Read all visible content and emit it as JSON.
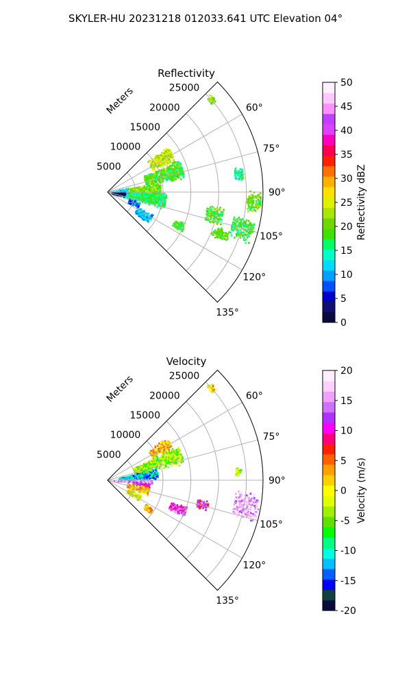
{
  "figure_title": "SKYLER-HU  20231218  012033.641 UTC Elevation 04°",
  "chart_data": [
    {
      "type": "heatmap",
      "title": "Reflectivity",
      "radial_label": "Meters",
      "radial_ticks": [
        5000,
        10000,
        15000,
        20000,
        25000
      ],
      "angle_ticks": [
        60,
        75,
        90,
        105,
        120,
        135
      ],
      "angle_range_deg": [
        45,
        135
      ],
      "range_max": 28000,
      "colorbar": {
        "label": "Reflectivity dBZ",
        "min": 0,
        "max": 50,
        "ticks": [
          0,
          5,
          10,
          15,
          20,
          25,
          30,
          35,
          40,
          45,
          50
        ],
        "colors": [
          "#0a0a3c",
          "#10106e",
          "#0000c8",
          "#0050ff",
          "#00a0ff",
          "#00dcff",
          "#00ffc8",
          "#00ff64",
          "#40e000",
          "#70d800",
          "#a8e800",
          "#e0f000",
          "#ffe000",
          "#ffb000",
          "#ff7000",
          "#ff2000",
          "#ff0050",
          "#ff00c0",
          "#e040ff",
          "#c040ff",
          "#ff90ff",
          "#ffc8ff",
          "#fff0ff"
        ]
      },
      "blobs": [
        {
          "az": 58,
          "r": [
            9000,
            13500
          ],
          "spread": 7,
          "value": 24
        },
        {
          "az": 72,
          "r": [
            7000,
            14000
          ],
          "spread": 8,
          "value": 19
        },
        {
          "az": 86,
          "r": [
            3500,
            9500
          ],
          "spread": 9,
          "value": 21
        },
        {
          "az": 98,
          "r": [
            2000,
            10500
          ],
          "spread": 9,
          "value": 17
        },
        {
          "az": 88,
          "r": [
            500,
            3500
          ],
          "spread": 12,
          "value": 11
        },
        {
          "az": 97,
          "r": [
            700,
            3000
          ],
          "spread": 8,
          "value": 3
        },
        {
          "az": 112,
          "r": [
            4000,
            6000
          ],
          "spread": 6,
          "value": 8
        },
        {
          "az": 122,
          "r": [
            6000,
            9000
          ],
          "spread": 6,
          "value": 11
        },
        {
          "az": 94,
          "r": [
            25000,
            27500
          ],
          "spread": 5,
          "value": 20
        },
        {
          "az": 102,
          "r": [
            18000,
            21000
          ],
          "spread": 5,
          "value": 19
        },
        {
          "az": 105,
          "r": [
            23000,
            27000
          ],
          "spread": 5,
          "value": 18
        },
        {
          "az": 115,
          "r": [
            13000,
            15000
          ],
          "spread": 4,
          "value": 19
        },
        {
          "az": 110,
          "r": [
            20000,
            23000
          ],
          "spread": 3,
          "value": 20
        },
        {
          "az": 48,
          "r": [
            24500,
            25500
          ],
          "spread": 2,
          "value": 22
        },
        {
          "az": 82,
          "r": [
            23000,
            24500
          ],
          "spread": 3,
          "value": 16
        }
      ]
    },
    {
      "type": "heatmap",
      "title": "Velocity",
      "radial_label": "Meters",
      "radial_ticks": [
        5000,
        10000,
        15000,
        20000,
        25000
      ],
      "angle_ticks": [
        60,
        75,
        90,
        105,
        120,
        135
      ],
      "angle_range_deg": [
        45,
        135
      ],
      "range_max": 28000,
      "colorbar": {
        "label": "Velocity (m/s)",
        "min": -20,
        "max": 20,
        "ticks": [
          -20,
          -15,
          -10,
          -5,
          0,
          5,
          10,
          15,
          20
        ],
        "colors": [
          "#0a0a3c",
          "#104040",
          "#0000ff",
          "#0060ff",
          "#00c0ff",
          "#00ffe0",
          "#00ff80",
          "#00ff00",
          "#60e000",
          "#a0f000",
          "#e0ff00",
          "#ffff00",
          "#ffd000",
          "#ffa000",
          "#ff6000",
          "#ff2000",
          "#ff0080",
          "#ff00ff",
          "#b030ff",
          "#d070ff",
          "#f0a0ff",
          "#ffd0ff",
          "#fff0ff"
        ]
      },
      "blobs": [
        {
          "az": 58,
          "r": [
            9000,
            13000
          ],
          "spread": 5,
          "value": 2
        },
        {
          "az": 70,
          "r": [
            5000,
            14000
          ],
          "spread": 8,
          "value": -4
        },
        {
          "az": 82,
          "r": [
            2000,
            9000
          ],
          "spread": 7,
          "value": -12
        },
        {
          "az": 91,
          "r": [
            1000,
            8000
          ],
          "spread": 3,
          "value": 15
        },
        {
          "az": 97,
          "r": [
            4500,
            7500
          ],
          "spread": 4,
          "value": 10
        },
        {
          "az": 104,
          "r": [
            3500,
            7500
          ],
          "spread": 6,
          "value": 2
        },
        {
          "az": 118,
          "r": [
            4000,
            6500
          ],
          "spread": 5,
          "value": -1
        },
        {
          "az": 112,
          "r": [
            12000,
            15000
          ],
          "spread": 4,
          "value": 12
        },
        {
          "az": 100,
          "r": [
            23000,
            27500
          ],
          "spread": 6,
          "value": 16
        },
        {
          "az": 104,
          "r": [
            16500,
            18500
          ],
          "spread": 3,
          "value": 10
        },
        {
          "az": 125,
          "r": [
            8000,
            9500
          ],
          "spread": 4,
          "value": 3
        },
        {
          "az": 48,
          "r": [
            24500,
            25500
          ],
          "spread": 2,
          "value": 2
        },
        {
          "az": 86,
          "r": [
            23000,
            24000
          ],
          "spread": 2,
          "value": -3
        }
      ]
    }
  ]
}
